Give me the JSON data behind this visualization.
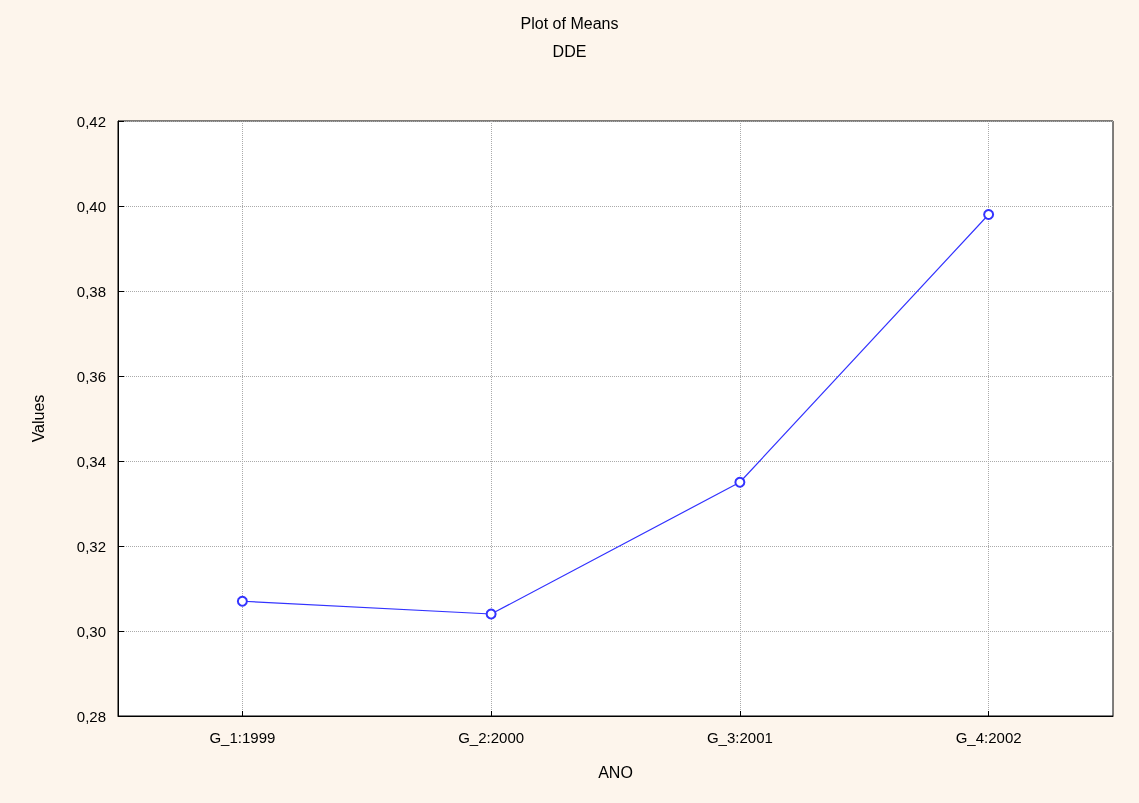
{
  "chart_data": {
    "type": "line",
    "title": "Plot of Means",
    "subtitle": "DDE",
    "xlabel": "ANO",
    "ylabel": "Values",
    "categories": [
      "G_1:1999",
      "G_2:2000",
      "G_3:2001",
      "G_4:2002"
    ],
    "series": [
      {
        "color": "#3333ff",
        "values": [
          0.307,
          0.304,
          0.335,
          0.398
        ]
      }
    ],
    "ylim": [
      0.28,
      0.42
    ],
    "yticks": [
      {
        "value": 0.28,
        "label": "0,28"
      },
      {
        "value": 0.3,
        "label": "0,30"
      },
      {
        "value": 0.32,
        "label": "0,32"
      },
      {
        "value": 0.34,
        "label": "0,34"
      },
      {
        "value": 0.36,
        "label": "0,36"
      },
      {
        "value": 0.38,
        "label": "0,38"
      },
      {
        "value": 0.4,
        "label": "0,40"
      },
      {
        "value": 0.42,
        "label": "0,42"
      }
    ],
    "grid": true,
    "marker": "circle",
    "line_style": "solid"
  }
}
